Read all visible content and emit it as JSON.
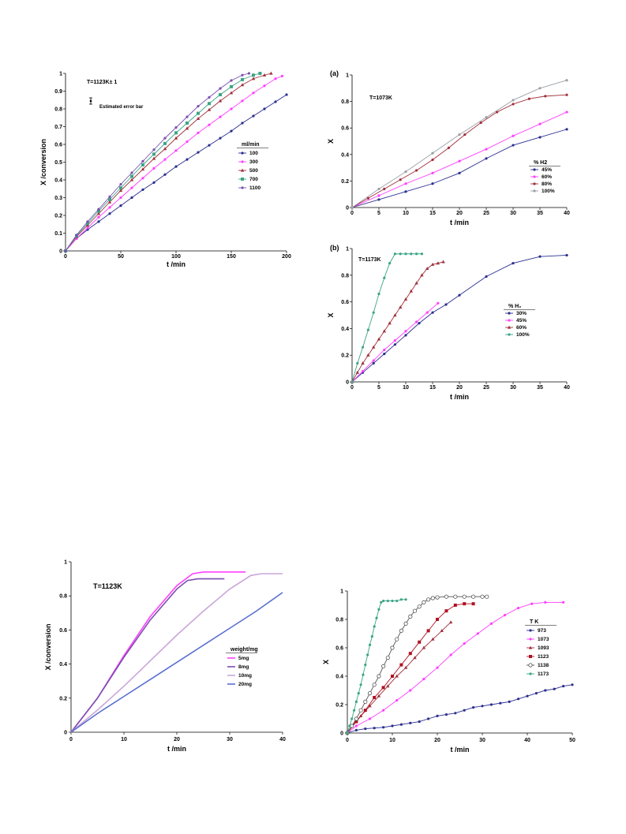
{
  "colors": {
    "navy": "#2b2f8f",
    "pink": "#ff40ff",
    "maroon": "#a0303c",
    "teal": "#3aa585",
    "gray": "#9aa0a6",
    "purple": "#7a4fb0",
    "lavender": "#c9a6d9",
    "red": "#b01020"
  },
  "chart_data": [
    {
      "id": "c1",
      "type": "line",
      "xlabel": "t /min",
      "ylabel": "X /conversion",
      "xlim": [
        0,
        200
      ],
      "ylim": [
        0,
        1
      ],
      "xticks": [
        "0",
        "50",
        "100",
        "150",
        "200"
      ],
      "yticks": [
        "0",
        "0.1",
        "0.2",
        "0.3",
        "0.4",
        "0.5",
        "0.6",
        "0.7",
        "0.8",
        "0.9",
        "1"
      ],
      "annotations": [
        {
          "text": "T=1123K± 1"
        },
        {
          "text": "Estimated error bar"
        }
      ],
      "legend_title": "ml/min",
      "series": [
        {
          "name": "100",
          "color": "#2b2f8f",
          "marker": "dot",
          "x": [
            0,
            10,
            20,
            30,
            40,
            50,
            60,
            70,
            80,
            90,
            100,
            110,
            120,
            130,
            140,
            150,
            160,
            170,
            180,
            190,
            200
          ],
          "y": [
            0,
            0.07,
            0.12,
            0.165,
            0.21,
            0.255,
            0.3,
            0.345,
            0.385,
            0.43,
            0.475,
            0.515,
            0.555,
            0.595,
            0.635,
            0.675,
            0.72,
            0.76,
            0.8,
            0.84,
            0.88
          ]
        },
        {
          "name": "300",
          "color": "#ff40ff",
          "marker": "dot",
          "x": [
            0,
            10,
            20,
            30,
            40,
            50,
            60,
            70,
            80,
            90,
            100,
            110,
            120,
            130,
            140,
            150,
            160,
            170,
            180,
            190,
            196
          ],
          "y": [
            0,
            0.07,
            0.13,
            0.19,
            0.245,
            0.3,
            0.355,
            0.41,
            0.465,
            0.515,
            0.565,
            0.615,
            0.665,
            0.71,
            0.755,
            0.8,
            0.845,
            0.89,
            0.93,
            0.97,
            0.985
          ]
        },
        {
          "name": "500",
          "color": "#a0303c",
          "marker": "triangle",
          "x": [
            0,
            10,
            20,
            30,
            40,
            50,
            60,
            70,
            80,
            90,
            100,
            110,
            120,
            130,
            140,
            150,
            160,
            170,
            180,
            186
          ],
          "y": [
            0,
            0.08,
            0.145,
            0.21,
            0.275,
            0.34,
            0.4,
            0.46,
            0.52,
            0.575,
            0.635,
            0.69,
            0.745,
            0.795,
            0.845,
            0.89,
            0.935,
            0.97,
            0.99,
            1.0
          ]
        },
        {
          "name": "700",
          "color": "#3aa585",
          "marker": "square",
          "x": [
            0,
            10,
            20,
            30,
            40,
            50,
            60,
            70,
            80,
            90,
            100,
            110,
            120,
            130,
            140,
            150,
            160,
            170,
            176
          ],
          "y": [
            0,
            0.085,
            0.155,
            0.225,
            0.29,
            0.355,
            0.42,
            0.485,
            0.545,
            0.605,
            0.665,
            0.72,
            0.775,
            0.83,
            0.88,
            0.925,
            0.965,
            0.99,
            1.0
          ]
        },
        {
          "name": "1100",
          "color": "#7a4fb0",
          "marker": "dot",
          "x": [
            0,
            10,
            20,
            30,
            40,
            50,
            60,
            70,
            80,
            90,
            100,
            110,
            120,
            130,
            140,
            150,
            160,
            166
          ],
          "y": [
            0,
            0.09,
            0.165,
            0.235,
            0.305,
            0.375,
            0.44,
            0.505,
            0.57,
            0.635,
            0.695,
            0.755,
            0.815,
            0.865,
            0.915,
            0.96,
            0.99,
            1.0
          ]
        }
      ]
    },
    {
      "id": "c2",
      "type": "line",
      "panel_label": "(a)",
      "xlabel": "t /min",
      "ylabel": "X",
      "xlim": [
        0,
        40
      ],
      "ylim": [
        0,
        1
      ],
      "xticks": [
        "0",
        "5",
        "10",
        "15",
        "20",
        "25",
        "30",
        "35",
        "40"
      ],
      "yticks": [
        "0",
        "0.2",
        "0.4",
        "0.6",
        "0.8",
        "1"
      ],
      "annotations": [
        {
          "text": "T=1073K"
        }
      ],
      "legend_title": "%  H2",
      "series": [
        {
          "name": "45%",
          "color": "#2b2f8f",
          "marker": "dot",
          "x": [
            0,
            5,
            10,
            15,
            20,
            25,
            30,
            35,
            40
          ],
          "y": [
            0,
            0.06,
            0.12,
            0.18,
            0.26,
            0.37,
            0.47,
            0.53,
            0.59
          ]
        },
        {
          "name": "60%",
          "color": "#ff40ff",
          "marker": "dot",
          "x": [
            0,
            5,
            10,
            15,
            20,
            25,
            30,
            35,
            40
          ],
          "y": [
            0,
            0.09,
            0.18,
            0.26,
            0.35,
            0.44,
            0.54,
            0.63,
            0.72
          ]
        },
        {
          "name": "80%",
          "color": "#a0303c",
          "marker": "dot",
          "x": [
            0,
            3,
            6,
            9,
            12,
            15,
            18,
            21,
            24,
            27,
            30,
            33,
            36,
            40
          ],
          "y": [
            0,
            0.07,
            0.14,
            0.21,
            0.28,
            0.36,
            0.45,
            0.55,
            0.64,
            0.72,
            0.78,
            0.82,
            0.84,
            0.85
          ]
        },
        {
          "name": "100%",
          "color": "#9aa0a6",
          "marker": "dot",
          "x": [
            0,
            5,
            10,
            15,
            20,
            25,
            30,
            35,
            40
          ],
          "y": [
            0,
            0.14,
            0.27,
            0.41,
            0.55,
            0.68,
            0.81,
            0.9,
            0.96
          ]
        }
      ]
    },
    {
      "id": "c3",
      "type": "line",
      "panel_label": "(b)",
      "xlabel": "t /min",
      "ylabel": "X",
      "xlim": [
        0,
        40
      ],
      "ylim": [
        0,
        1
      ],
      "xticks": [
        "0",
        "5",
        "10",
        "15",
        "20",
        "25",
        "30",
        "35",
        "40"
      ],
      "yticks": [
        "0",
        "0.2",
        "0.4",
        "0.6",
        "0.8",
        "1"
      ],
      "annotations": [
        {
          "text": "T=1173K"
        }
      ],
      "legend_title": "%   H₂",
      "series": [
        {
          "name": "30%",
          "color": "#2b2f8f",
          "marker": "dot",
          "x": [
            0,
            2,
            4,
            6,
            8,
            10,
            12.5,
            15,
            17.5,
            20,
            25,
            30,
            35,
            40
          ],
          "y": [
            0,
            0.07,
            0.14,
            0.21,
            0.28,
            0.35,
            0.44,
            0.52,
            0.58,
            0.65,
            0.79,
            0.89,
            0.94,
            0.95
          ]
        },
        {
          "name": "45%",
          "color": "#ff40ff",
          "marker": "dot",
          "x": [
            0,
            2,
            4,
            6,
            8,
            10,
            12,
            14,
            16
          ],
          "y": [
            0,
            0.08,
            0.16,
            0.24,
            0.31,
            0.38,
            0.45,
            0.52,
            0.59
          ]
        },
        {
          "name": "60%",
          "color": "#a0303c",
          "marker": "triangle",
          "x": [
            0,
            1,
            2,
            3,
            4,
            5,
            6,
            7,
            8,
            9,
            10,
            11,
            12,
            13,
            14,
            15,
            16,
            17
          ],
          "y": [
            0,
            0.07,
            0.14,
            0.2,
            0.26,
            0.32,
            0.38,
            0.44,
            0.5,
            0.56,
            0.62,
            0.68,
            0.74,
            0.8,
            0.85,
            0.88,
            0.89,
            0.9
          ]
        },
        {
          "name": "100%",
          "color": "#3aa585",
          "marker": "dot",
          "x": [
            0,
            1,
            2,
            3,
            4,
            5,
            6,
            7,
            8,
            9,
            10,
            11,
            12,
            13
          ],
          "y": [
            0,
            0.14,
            0.26,
            0.39,
            0.52,
            0.66,
            0.78,
            0.89,
            0.96,
            0.96,
            0.96,
            0.96,
            0.96,
            0.96
          ]
        }
      ]
    },
    {
      "id": "c4",
      "type": "line",
      "xlabel": "t /min",
      "ylabel": "X /conversion",
      "xlim": [
        0,
        40
      ],
      "ylim": [
        0,
        1
      ],
      "xticks": [
        "0",
        "10",
        "20",
        "30",
        "40"
      ],
      "yticks": [
        "0",
        "0.2",
        "0.4",
        "0.6",
        "0.8",
        "1"
      ],
      "annotations": [
        {
          "text": "T=1123K"
        }
      ],
      "legend_title": "weight/mg",
      "series": [
        {
          "name": "5mg",
          "color": "#ff40ff",
          "marker": "none",
          "x": [
            0,
            5,
            10,
            15,
            20,
            23,
            25,
            27,
            30,
            33
          ],
          "y": [
            0,
            0.2,
            0.45,
            0.68,
            0.86,
            0.93,
            0.94,
            0.94,
            0.94,
            0.94
          ]
        },
        {
          "name": "8mg",
          "color": "#7a4fb0",
          "marker": "none",
          "x": [
            0,
            5,
            10,
            15,
            20,
            22,
            24,
            26,
            29
          ],
          "y": [
            0,
            0.2,
            0.44,
            0.66,
            0.84,
            0.89,
            0.9,
            0.9,
            0.9
          ]
        },
        {
          "name": "10mg",
          "color": "#c9a6d9",
          "marker": "none",
          "x": [
            0,
            5,
            10,
            15,
            20,
            25,
            30,
            34,
            36,
            40
          ],
          "y": [
            0,
            0.13,
            0.27,
            0.42,
            0.57,
            0.71,
            0.84,
            0.92,
            0.93,
            0.93
          ]
        },
        {
          "name": "20mg",
          "color": "#5a6fd0",
          "marker": "none",
          "x": [
            0,
            5,
            10,
            15,
            20,
            25,
            30,
            35,
            40
          ],
          "y": [
            0,
            0.11,
            0.21,
            0.31,
            0.41,
            0.51,
            0.61,
            0.71,
            0.82
          ]
        }
      ]
    },
    {
      "id": "c5",
      "type": "line",
      "xlabel": "t /min",
      "ylabel": "X",
      "xlim": [
        0,
        50
      ],
      "ylim": [
        0,
        1
      ],
      "xticks": [
        "0",
        "10",
        "20",
        "30",
        "40",
        "50"
      ],
      "yticks": [
        "0",
        "0.2",
        "0.4",
        "0.6",
        "0.8",
        "1"
      ],
      "legend_title": "T   K",
      "series": [
        {
          "name": "973",
          "color": "#2b2f8f",
          "marker": "dot",
          "x": [
            0,
            2,
            4,
            6,
            8,
            10,
            12,
            14,
            16,
            18,
            20,
            22,
            24,
            26,
            28,
            30,
            32,
            34,
            36,
            38,
            40,
            42,
            44,
            46,
            48,
            50
          ],
          "y": [
            0,
            0.02,
            0.03,
            0.035,
            0.04,
            0.05,
            0.06,
            0.07,
            0.08,
            0.1,
            0.12,
            0.13,
            0.14,
            0.16,
            0.18,
            0.19,
            0.2,
            0.21,
            0.22,
            0.24,
            0.26,
            0.28,
            0.3,
            0.31,
            0.33,
            0.34
          ]
        },
        {
          "name": "1073",
          "color": "#ff40ff",
          "marker": "dot",
          "x": [
            0,
            2,
            5,
            8,
            11,
            14,
            17,
            20,
            23,
            26,
            29,
            32,
            35,
            38,
            41,
            44,
            48
          ],
          "y": [
            0,
            0.05,
            0.1,
            0.16,
            0.23,
            0.3,
            0.38,
            0.46,
            0.55,
            0.63,
            0.7,
            0.77,
            0.83,
            0.88,
            0.91,
            0.92,
            0.92
          ]
        },
        {
          "name": "1093",
          "color": "#a0303c",
          "marker": "triangle",
          "x": [
            0,
            1,
            3,
            5,
            7,
            9,
            11,
            13,
            15,
            17,
            19,
            21,
            23
          ],
          "y": [
            0,
            0.05,
            0.12,
            0.19,
            0.26,
            0.33,
            0.4,
            0.46,
            0.53,
            0.6,
            0.66,
            0.72,
            0.78
          ]
        },
        {
          "name": "1123",
          "color": "#b01020",
          "marker": "square",
          "x": [
            0,
            2,
            4,
            6,
            8,
            10,
            12,
            14,
            16,
            18,
            20,
            22,
            24,
            26,
            28
          ],
          "y": [
            0,
            0.08,
            0.16,
            0.25,
            0.32,
            0.4,
            0.48,
            0.56,
            0.64,
            0.72,
            0.8,
            0.86,
            0.9,
            0.91,
            0.91
          ]
        },
        {
          "name": "1138",
          "color": "#555555",
          "marker": "circle",
          "x": [
            0,
            1,
            2,
            3,
            4,
            5,
            6,
            7,
            8,
            9,
            10,
            11,
            12,
            13,
            14,
            15,
            16,
            17,
            18,
            19,
            20,
            22,
            24,
            26,
            28,
            30,
            31
          ],
          "y": [
            0,
            0.05,
            0.1,
            0.16,
            0.22,
            0.28,
            0.34,
            0.4,
            0.47,
            0.53,
            0.6,
            0.66,
            0.72,
            0.77,
            0.82,
            0.86,
            0.89,
            0.92,
            0.94,
            0.95,
            0.955,
            0.96,
            0.96,
            0.96,
            0.96,
            0.96,
            0.96
          ]
        },
        {
          "name": "1173",
          "color": "#3aa585",
          "marker": "dot",
          "x": [
            0,
            0.5,
            1,
            1.5,
            2,
            2.5,
            3,
            3.5,
            4,
            4.5,
            5,
            5.5,
            6,
            6.5,
            7,
            7.5,
            8,
            9,
            10,
            11,
            12,
            13
          ],
          "y": [
            0,
            0.05,
            0.1,
            0.16,
            0.22,
            0.28,
            0.34,
            0.41,
            0.48,
            0.55,
            0.62,
            0.68,
            0.75,
            0.81,
            0.87,
            0.92,
            0.93,
            0.93,
            0.93,
            0.93,
            0.94,
            0.94
          ]
        }
      ]
    }
  ]
}
